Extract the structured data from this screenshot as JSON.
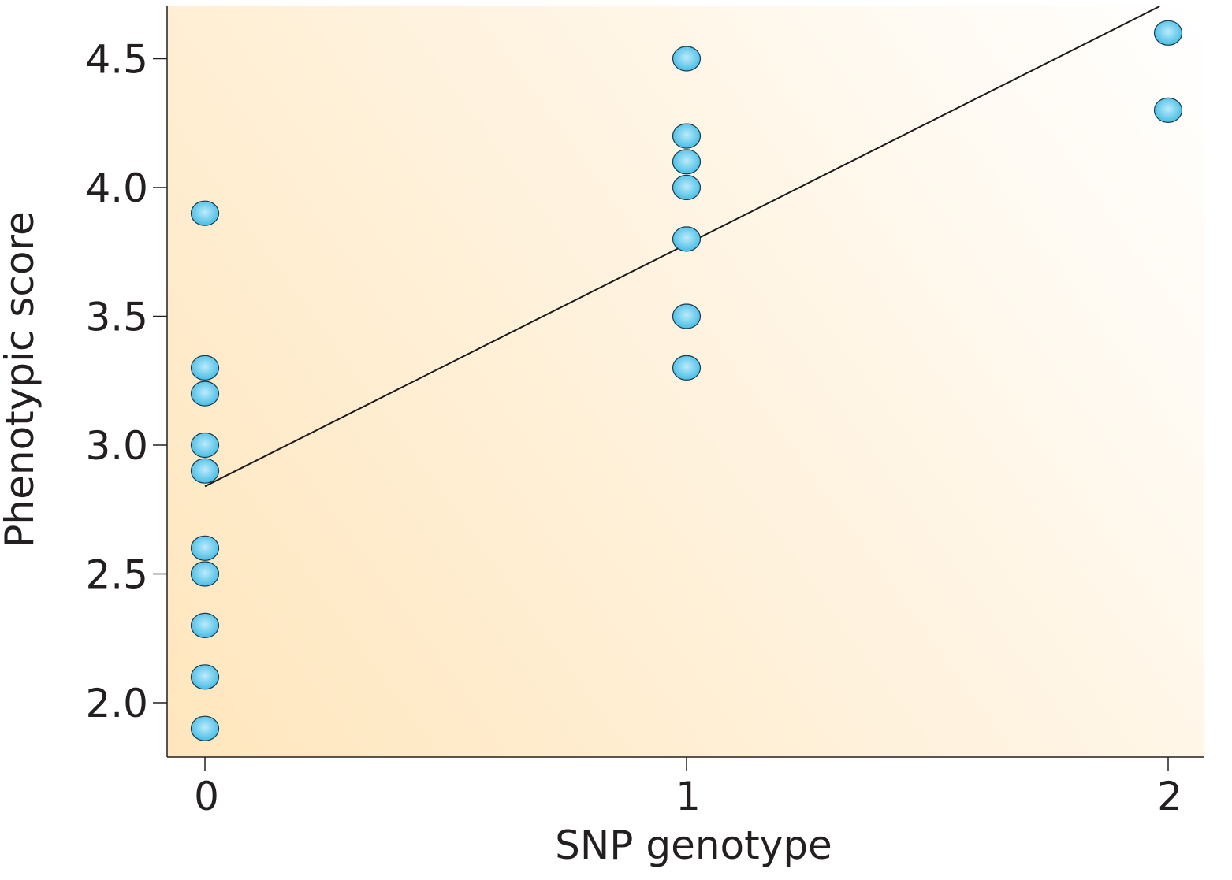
{
  "chart_data": {
    "type": "scatter",
    "title": "",
    "xlabel": "SNP genotype",
    "ylabel": "Phenotypic score",
    "xlim": [
      -0.08,
      2.08
    ],
    "ylim": [
      1.79,
      4.71
    ],
    "x_ticks": [
      0,
      1,
      2
    ],
    "x_tick_labels": [
      "0",
      "1",
      "2"
    ],
    "y_ticks": [
      2.0,
      2.5,
      3.0,
      3.5,
      4.0,
      4.5
    ],
    "y_tick_labels": [
      "2.0",
      "2.5",
      "3.0",
      "3.5",
      "4.0",
      "4.5"
    ],
    "grid": false,
    "points": [
      {
        "x": 0,
        "y": 3.9
      },
      {
        "x": 0,
        "y": 3.3
      },
      {
        "x": 0,
        "y": 3.2
      },
      {
        "x": 0,
        "y": 3.0
      },
      {
        "x": 0,
        "y": 2.9
      },
      {
        "x": 0,
        "y": 2.6
      },
      {
        "x": 0,
        "y": 2.5
      },
      {
        "x": 0,
        "y": 2.3
      },
      {
        "x": 0,
        "y": 2.1
      },
      {
        "x": 0,
        "y": 1.9
      },
      {
        "x": 1,
        "y": 4.5
      },
      {
        "x": 1,
        "y": 4.2
      },
      {
        "x": 1,
        "y": 4.1
      },
      {
        "x": 1,
        "y": 4.0
      },
      {
        "x": 1,
        "y": 3.8
      },
      {
        "x": 1,
        "y": 3.5
      },
      {
        "x": 1,
        "y": 3.3
      },
      {
        "x": 2,
        "y": 4.6
      },
      {
        "x": 2,
        "y": 4.3
      }
    ],
    "regression_line": {
      "x": [
        0,
        2
      ],
      "y": [
        2.84,
        4.72
      ]
    },
    "colors": {
      "point_fill": "#45bde6",
      "point_highlight": "#bdeafa",
      "point_stroke": "#1b3a4b",
      "line": "#1a1a1a",
      "axis": "#231f20",
      "background_warm": "#ffe6bd",
      "background_light": "#ffffff"
    }
  }
}
